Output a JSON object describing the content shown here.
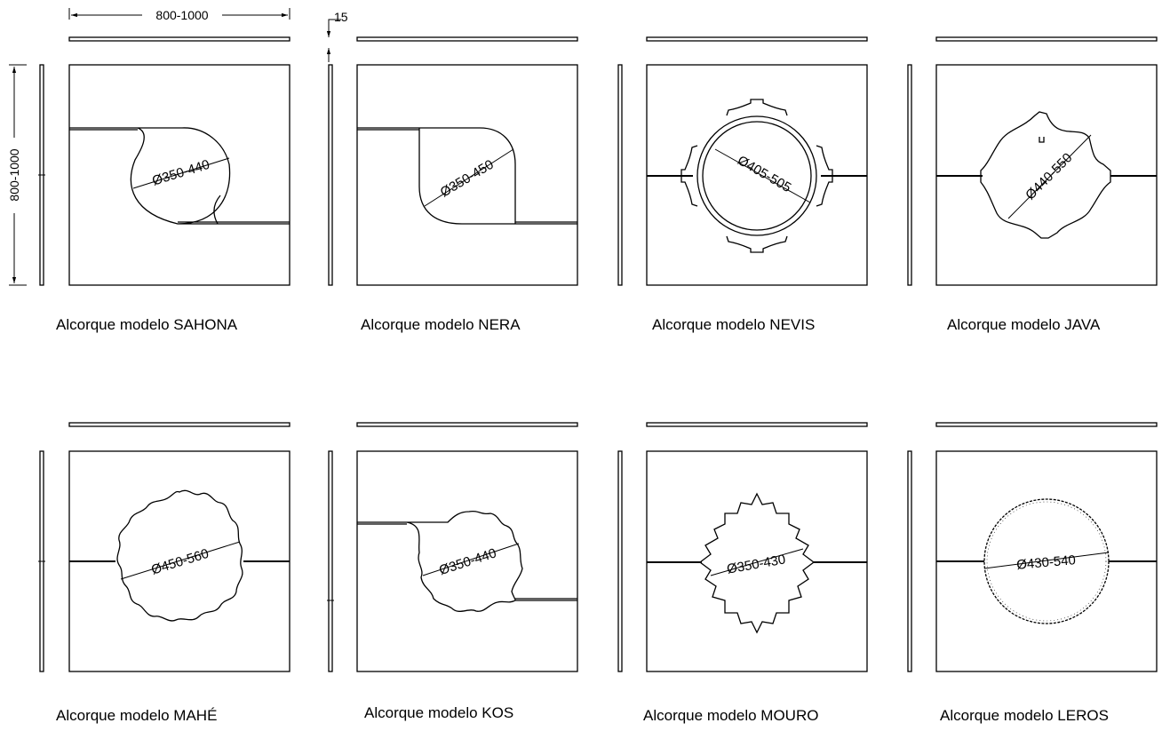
{
  "dimensions": {
    "width_range": "800-1000",
    "height_range": "800-1000",
    "thickness": "15"
  },
  "models": [
    {
      "id": "sahona",
      "caption": "Alcorque modelo SAHONA",
      "diameter": "Ø350-440"
    },
    {
      "id": "nera",
      "caption": "Alcorque modelo NERA",
      "diameter": "Ø350-450"
    },
    {
      "id": "nevis",
      "caption": "Alcorque modelo NEVIS",
      "diameter": "Ø405-505"
    },
    {
      "id": "java",
      "caption": "Alcorque modelo JAVA",
      "diameter": "Ø440-550"
    },
    {
      "id": "mahe",
      "caption": "Alcorque modelo MAHÉ",
      "diameter": "Ø450-560"
    },
    {
      "id": "kos",
      "caption": "Alcorque modelo KOS",
      "diameter": "Ø350-440"
    },
    {
      "id": "mouro",
      "caption": "Alcorque modelo MOURO",
      "diameter": "Ø350-430"
    },
    {
      "id": "leros",
      "caption": "Alcorque modelo LEROS",
      "diameter": "Ø430-540"
    }
  ]
}
